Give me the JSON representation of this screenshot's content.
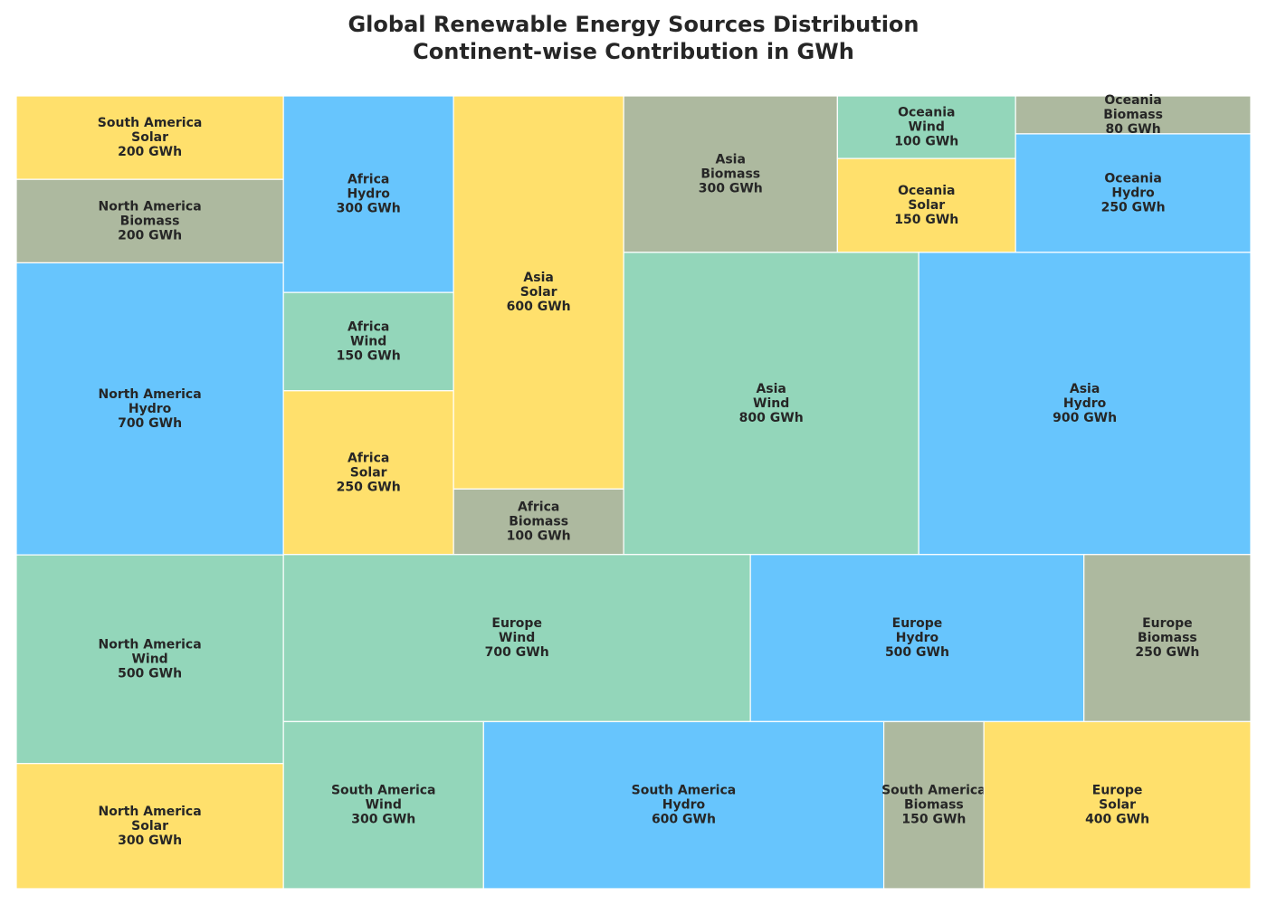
{
  "chart_data": {
    "type": "treemap",
    "title": "Global Renewable Energy Sources Distribution",
    "subtitle": "Continent-wise Contribution in GWh",
    "unit": "GWh",
    "colors": {
      "Solar": "#ffe06c",
      "Wind": "#93d6ba",
      "Hydro": "#67c5fd",
      "Biomass": "#adb99f"
    },
    "items": [
      {
        "continent": "South America",
        "source": "Solar",
        "value": 200
      },
      {
        "continent": "North America",
        "source": "Biomass",
        "value": 200
      },
      {
        "continent": "North America",
        "source": "Hydro",
        "value": 700
      },
      {
        "continent": "North America",
        "source": "Wind",
        "value": 500
      },
      {
        "continent": "North America",
        "source": "Solar",
        "value": 300
      },
      {
        "continent": "Africa",
        "source": "Hydro",
        "value": 300
      },
      {
        "continent": "Africa",
        "source": "Wind",
        "value": 150
      },
      {
        "continent": "Africa",
        "source": "Solar",
        "value": 250
      },
      {
        "continent": "Asia",
        "source": "Solar",
        "value": 600
      },
      {
        "continent": "Africa",
        "source": "Biomass",
        "value": 100
      },
      {
        "continent": "Asia",
        "source": "Biomass",
        "value": 300
      },
      {
        "continent": "Oceania",
        "source": "Wind",
        "value": 100
      },
      {
        "continent": "Oceania",
        "source": "Solar",
        "value": 150
      },
      {
        "continent": "Oceania",
        "source": "Biomass",
        "value": 80
      },
      {
        "continent": "Oceania",
        "source": "Hydro",
        "value": 250
      },
      {
        "continent": "Asia",
        "source": "Wind",
        "value": 800
      },
      {
        "continent": "Asia",
        "source": "Hydro",
        "value": 900
      },
      {
        "continent": "Europe",
        "source": "Wind",
        "value": 700
      },
      {
        "continent": "Europe",
        "source": "Hydro",
        "value": 500
      },
      {
        "continent": "Europe",
        "source": "Biomass",
        "value": 250
      },
      {
        "continent": "South America",
        "source": "Wind",
        "value": 300
      },
      {
        "continent": "South America",
        "source": "Hydro",
        "value": 600
      },
      {
        "continent": "South America",
        "source": "Biomass",
        "value": 150
      },
      {
        "continent": "Europe",
        "source": "Solar",
        "value": 400
      }
    ]
  }
}
